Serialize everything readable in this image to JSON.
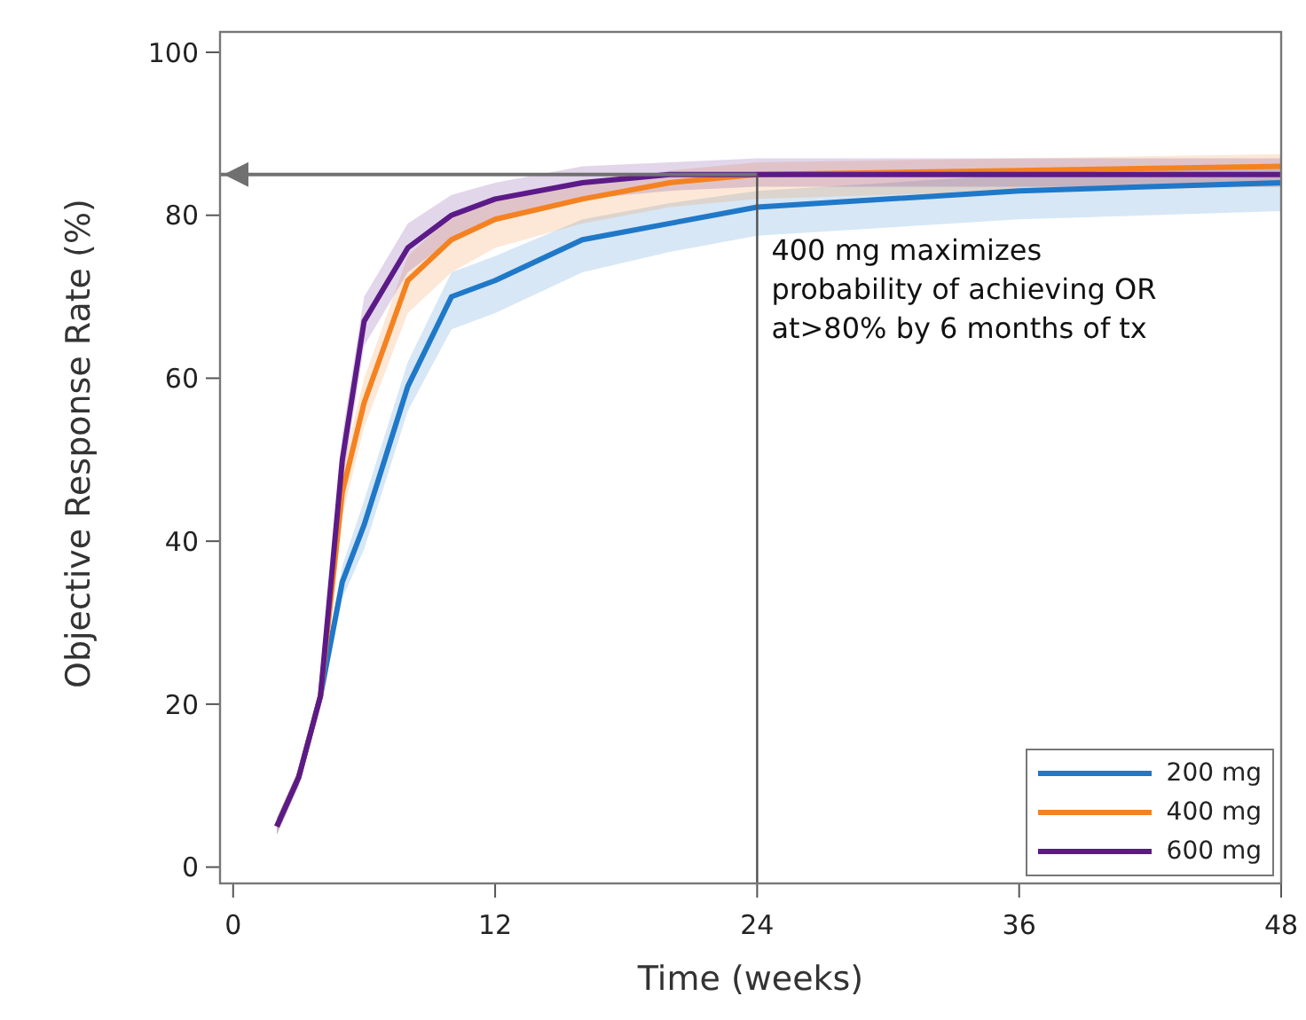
{
  "chart_data": {
    "type": "line",
    "xlabel": "Time (weeks)",
    "ylabel": "Objective Response Rate (%)",
    "x": [
      2,
      3,
      4,
      5,
      6,
      8,
      10,
      12,
      16,
      20,
      24,
      36,
      48
    ],
    "series": [
      {
        "name": "200 mg",
        "color": "#1f78c8",
        "values": [
          5,
          11,
          21,
          35,
          42,
          59,
          70,
          72,
          77,
          79,
          81,
          83,
          84
        ],
        "lower": [
          4,
          10,
          20,
          33,
          39,
          56,
          66,
          68,
          73,
          75.5,
          77.5,
          79.5,
          80.5
        ],
        "upper": [
          6,
          12,
          22,
          37,
          45,
          62,
          73,
          75,
          79.5,
          81.5,
          83,
          85,
          86
        ]
      },
      {
        "name": "400 mg",
        "color": "#f58220",
        "values": [
          5,
          11,
          21,
          46,
          57,
          72,
          77,
          79.5,
          82,
          84,
          85,
          85.5,
          86
        ],
        "lower": [
          4,
          10,
          20,
          43,
          54,
          68,
          73,
          76,
          79,
          81,
          82,
          83,
          83.5
        ],
        "upper": [
          6,
          12,
          22,
          49,
          60,
          75,
          80,
          82,
          84,
          85.5,
          86.5,
          87,
          87.5
        ]
      },
      {
        "name": "600 mg",
        "color": "#5c1a88",
        "values": [
          5,
          11,
          21,
          50,
          67,
          76,
          80,
          82,
          84,
          85,
          85,
          85,
          85
        ],
        "lower": [
          4,
          10,
          20,
          47,
          64,
          73,
          77,
          79.5,
          82,
          83,
          83.5,
          83.5,
          83.5
        ],
        "upper": [
          6,
          12,
          22,
          53,
          70,
          79,
          82.5,
          84,
          86,
          86.5,
          87,
          87,
          87
        ]
      }
    ],
    "xlim": [
      -0.6,
      48
    ],
    "xticks": [
      0,
      12,
      24,
      36,
      48
    ],
    "ylim": [
      -2,
      102.5
    ],
    "yticks": [
      0,
      20,
      40,
      60,
      80,
      100
    ],
    "ref_lines": [
      {
        "axis": "y",
        "value": 85,
        "color": "#707070"
      },
      {
        "axis": "x",
        "value": 24,
        "color": "#505050"
      }
    ],
    "annotations": [
      {
        "text": "400 mg maximizes\nprobability of achieving OR\nat>80% by 6 months of tx",
        "x": 24,
        "y": 85
      }
    ],
    "grid": false,
    "legend": "bottom right",
    "marker": "none",
    "line_style": "solid"
  }
}
